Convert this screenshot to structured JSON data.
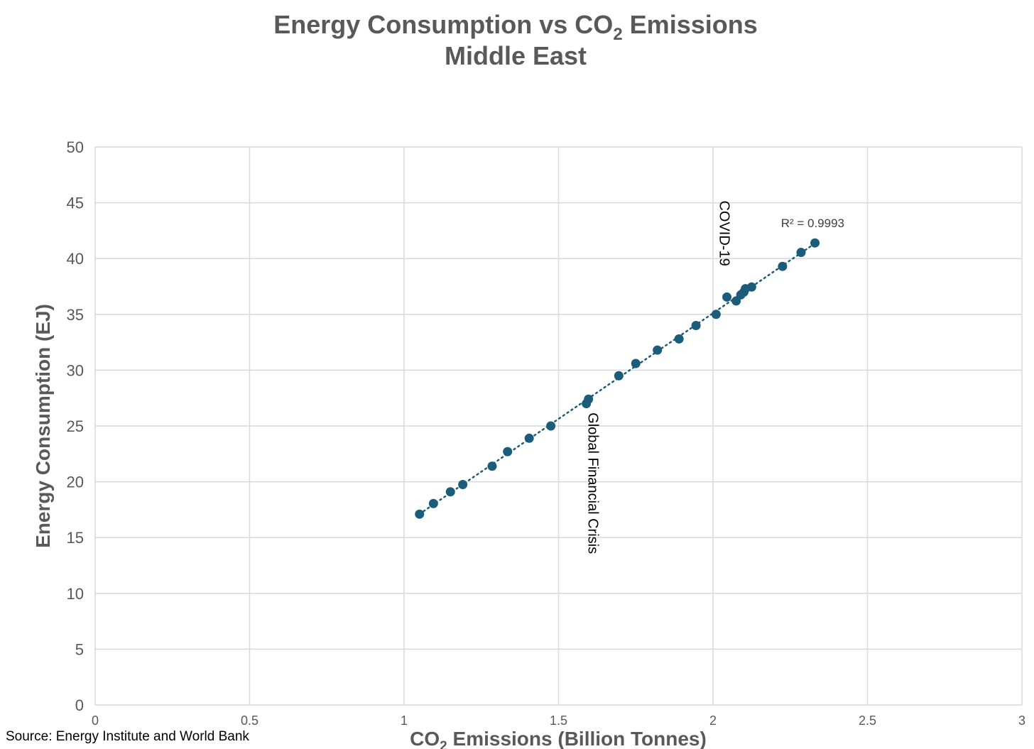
{
  "source_note": "Source: Energy Institute and World Bank",
  "chart_data": {
    "type": "scatter",
    "title": {
      "line1_prefix": "Energy Consumption vs CO",
      "line1_sub": "2",
      "line1_suffix": " Emissions",
      "line2": "Middle East"
    },
    "xlabel": {
      "prefix": "CO",
      "sub": "2",
      "suffix": " Emissions (Billion Tonnes)"
    },
    "ylabel": "Energy Consumption (EJ)",
    "xlim": [
      0,
      3
    ],
    "ylim": [
      0,
      50
    ],
    "x_ticks": [
      0,
      0.5,
      1,
      1.5,
      2,
      2.5,
      3
    ],
    "y_ticks": [
      0,
      5,
      10,
      15,
      20,
      25,
      30,
      35,
      40,
      45,
      50
    ],
    "grid": true,
    "marker_color": "#1a5c7a",
    "trendline": {
      "style": "dotted",
      "label": "R² = 0.9993",
      "label_x": 2.22,
      "label_y": 43.2
    },
    "points": [
      {
        "x": 1.05,
        "y": 17.1
      },
      {
        "x": 1.095,
        "y": 18.05
      },
      {
        "x": 1.15,
        "y": 19.1
      },
      {
        "x": 1.19,
        "y": 19.75
      },
      {
        "x": 1.285,
        "y": 21.4
      },
      {
        "x": 1.335,
        "y": 22.7
      },
      {
        "x": 1.405,
        "y": 23.9
      },
      {
        "x": 1.475,
        "y": 25.0
      },
      {
        "x": 1.59,
        "y": 27.0
      },
      {
        "x": 1.597,
        "y": 27.4
      },
      {
        "x": 1.695,
        "y": 29.5
      },
      {
        "x": 1.75,
        "y": 30.6
      },
      {
        "x": 1.82,
        "y": 31.8
      },
      {
        "x": 1.89,
        "y": 32.8
      },
      {
        "x": 1.945,
        "y": 34.0
      },
      {
        "x": 2.01,
        "y": 35.0
      },
      {
        "x": 2.045,
        "y": 36.55
      },
      {
        "x": 2.075,
        "y": 36.2
      },
      {
        "x": 2.09,
        "y": 36.75
      },
      {
        "x": 2.1,
        "y": 37.0
      },
      {
        "x": 2.105,
        "y": 37.3
      },
      {
        "x": 2.125,
        "y": 37.45
      },
      {
        "x": 2.225,
        "y": 39.3
      },
      {
        "x": 2.285,
        "y": 40.55
      },
      {
        "x": 2.33,
        "y": 41.4
      }
    ],
    "annotations": [
      {
        "text": "Global Financial Crisis",
        "x": 1.597,
        "y": 26.2,
        "rotation": 90
      },
      {
        "text": "COVID-19",
        "x": 2.022,
        "y": 45.2,
        "rotation": 90
      }
    ]
  }
}
